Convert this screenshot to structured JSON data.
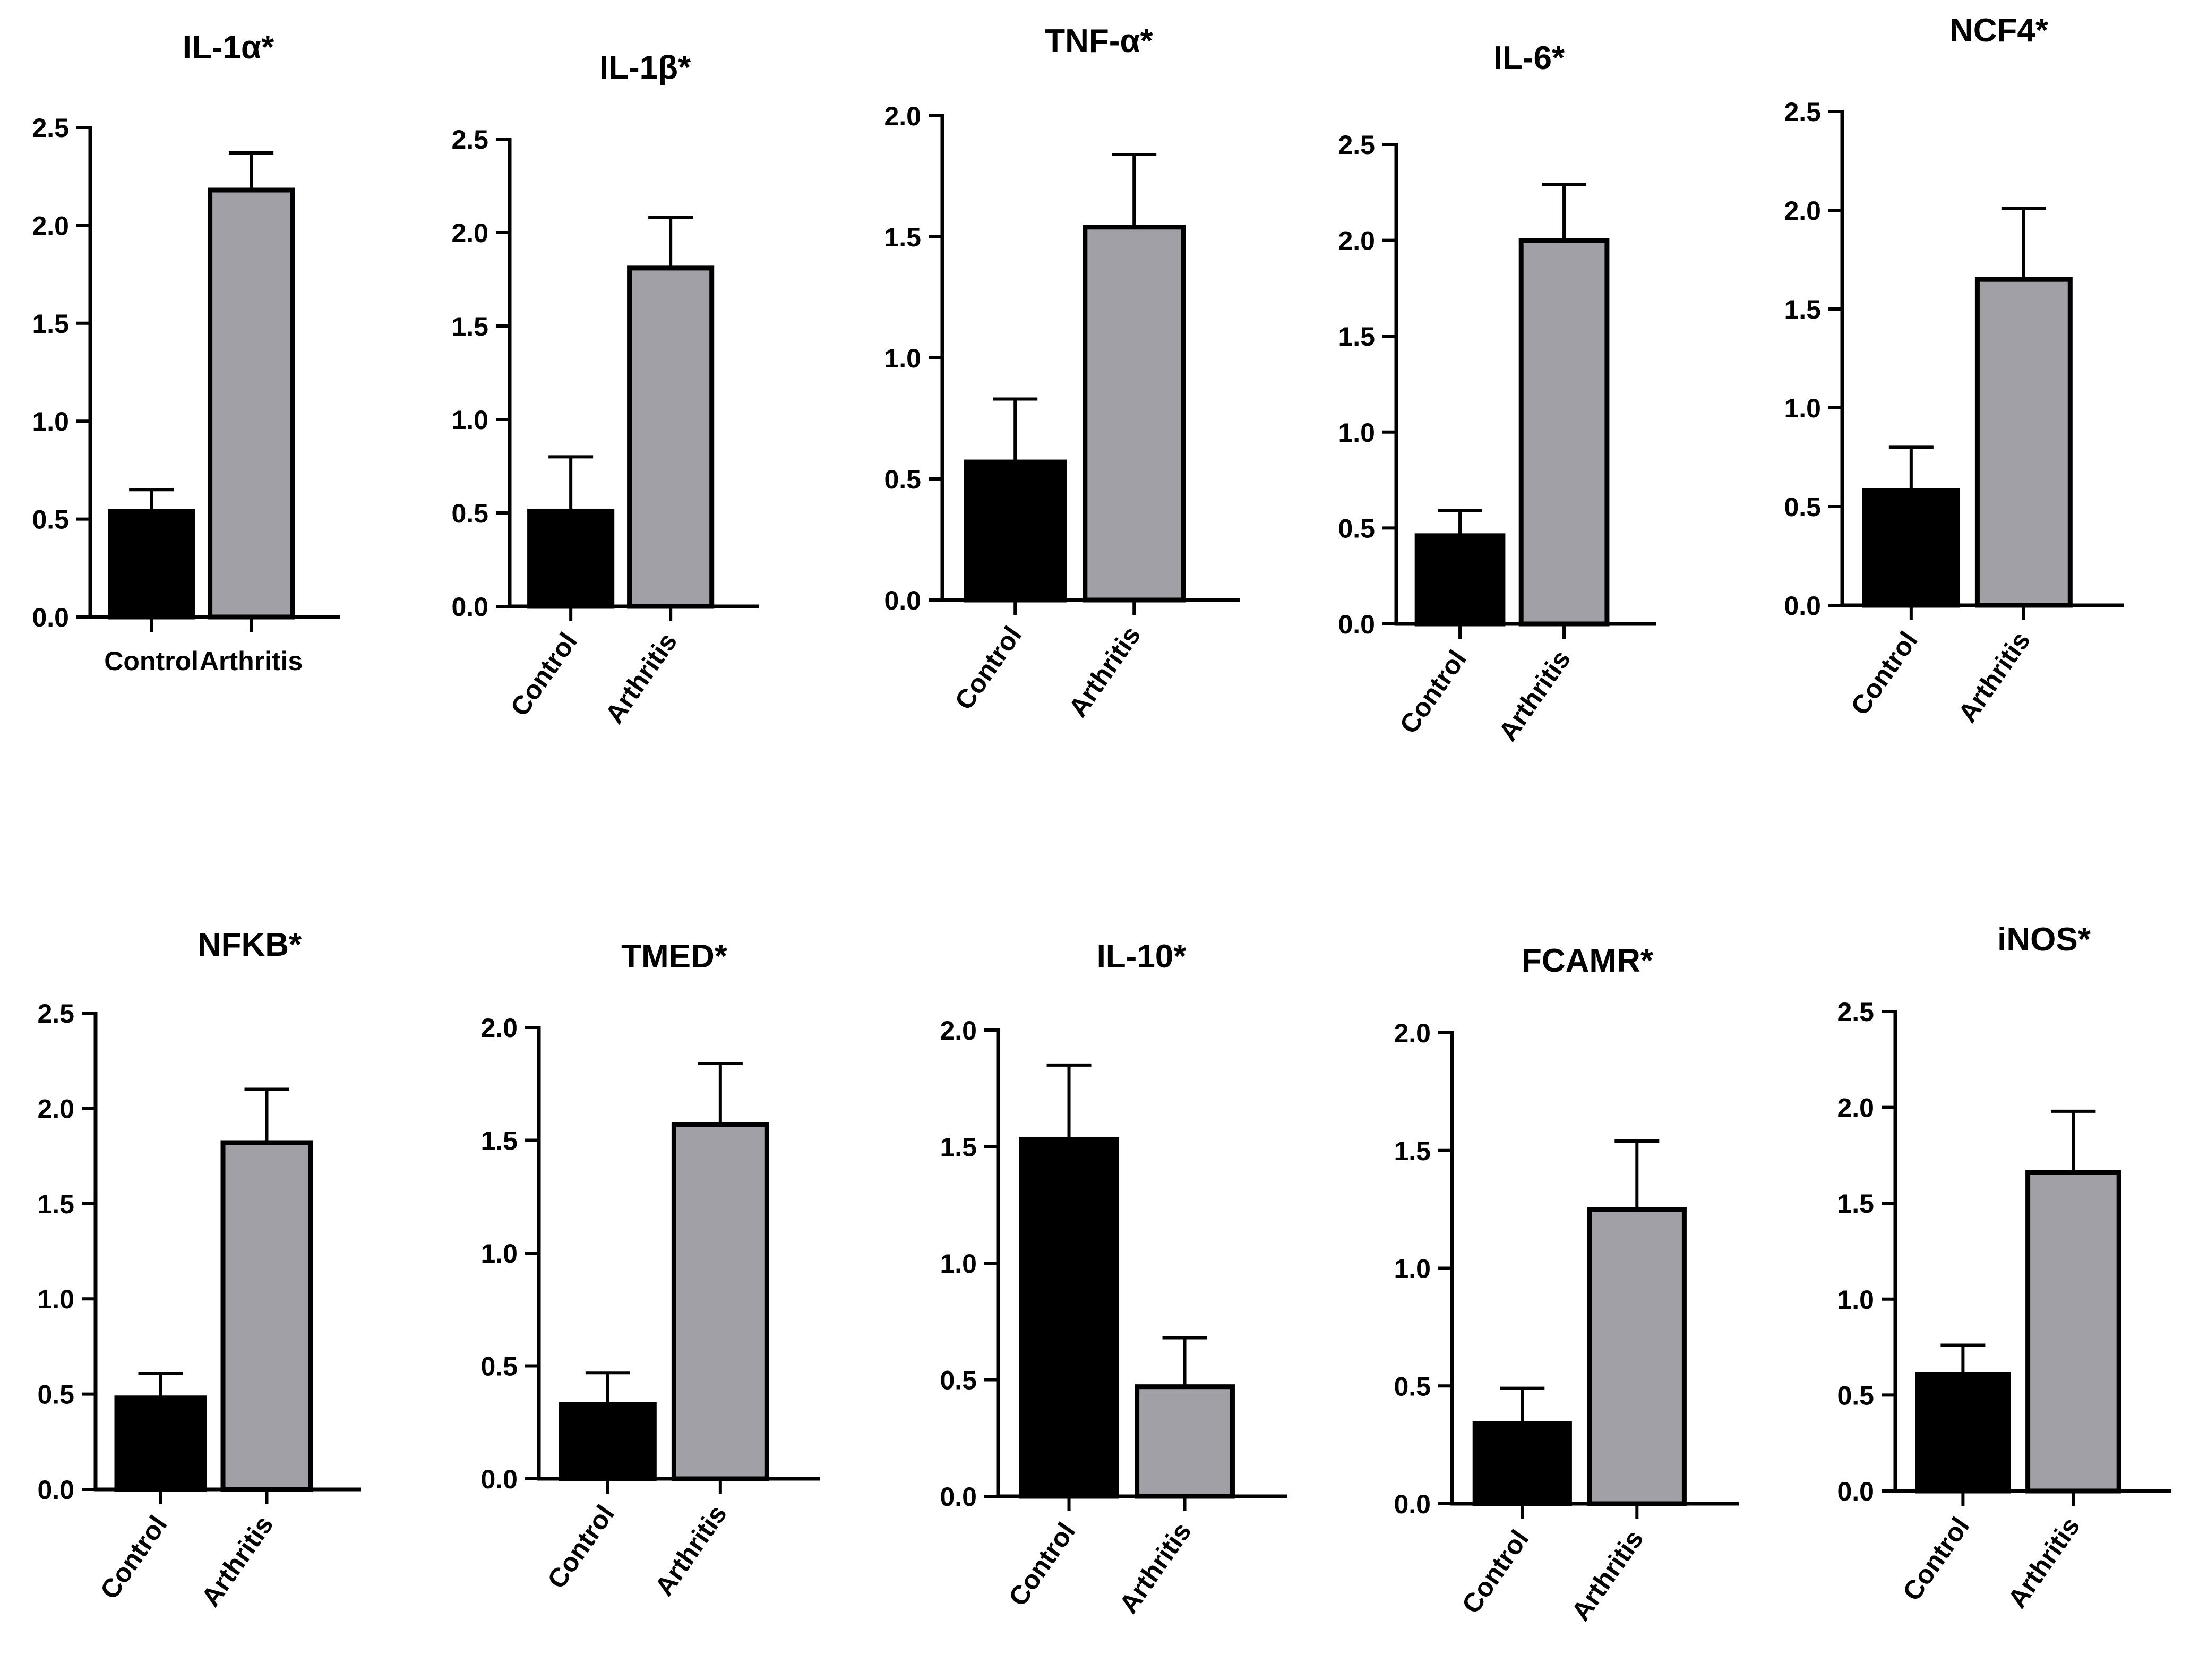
{
  "figure": {
    "bar_colors": {
      "Control": "#000000",
      "Arthritis": "#a0a0a6"
    },
    "outline_color": "#000000"
  },
  "chart_data": [
    {
      "type": "bar",
      "title": "IL-1α*",
      "categories": [
        "Control",
        "Arthritis"
      ],
      "values": [
        0.54,
        2.18
      ],
      "errors": [
        0.11,
        0.19
      ],
      "ylim": [
        0,
        2.5
      ],
      "yticks": [
        "0.0",
        "0.5",
        "1.0",
        "1.5",
        "2.0",
        "2.5"
      ],
      "xlabel": "",
      "ylabel": "",
      "tick_rotation": 0
    },
    {
      "type": "bar",
      "title": "IL-1β*",
      "categories": [
        "Control",
        "Arthritis"
      ],
      "values": [
        0.51,
        1.81
      ],
      "errors": [
        0.29,
        0.27
      ],
      "ylim": [
        0,
        2.5
      ],
      "yticks": [
        "0.0",
        "0.5",
        "1.0",
        "1.5",
        "2.0",
        "2.5"
      ],
      "xlabel": "",
      "ylabel": "",
      "tick_rotation": -55
    },
    {
      "type": "bar",
      "title": "TNF-α*",
      "categories": [
        "Control",
        "Arthritis"
      ],
      "values": [
        0.57,
        1.54
      ],
      "errors": [
        0.26,
        0.3
      ],
      "ylim": [
        0,
        2.0
      ],
      "yticks": [
        "0.0",
        "0.5",
        "1.0",
        "1.5",
        "2.0"
      ],
      "xlabel": "",
      "ylabel": "",
      "tick_rotation": -55
    },
    {
      "type": "bar",
      "title": "IL-6*",
      "categories": [
        "Control",
        "Arthritis"
      ],
      "values": [
        0.46,
        2.0
      ],
      "errors": [
        0.13,
        0.29
      ],
      "ylim": [
        0,
        2.5
      ],
      "yticks": [
        "0.0",
        "0.5",
        "1.0",
        "1.5",
        "2.0",
        "2.5"
      ],
      "xlabel": "",
      "ylabel": "",
      "tick_rotation": -55
    },
    {
      "type": "bar",
      "title": "NCF4*",
      "categories": [
        "Control",
        "Arthritis"
      ],
      "values": [
        0.58,
        1.65
      ],
      "errors": [
        0.22,
        0.36
      ],
      "ylim": [
        0,
        2.5
      ],
      "yticks": [
        "0.0",
        "0.5",
        "1.0",
        "1.5",
        "2.0",
        "2.5"
      ],
      "xlabel": "",
      "ylabel": "",
      "tick_rotation": -55
    },
    {
      "type": "bar",
      "title": "NFKB*",
      "categories": [
        "Control",
        "Arthritis"
      ],
      "values": [
        0.48,
        1.82
      ],
      "errors": [
        0.13,
        0.28
      ],
      "ylim": [
        0,
        2.5
      ],
      "yticks": [
        "0.0",
        "0.5",
        "1.0",
        "1.5",
        "2.0",
        "2.5"
      ],
      "xlabel": "",
      "ylabel": "",
      "tick_rotation": -55
    },
    {
      "type": "bar",
      "title": "TMED*",
      "categories": [
        "Control",
        "Arthritis"
      ],
      "values": [
        0.33,
        1.57
      ],
      "errors": [
        0.14,
        0.27
      ],
      "ylim": [
        0,
        2.0
      ],
      "yticks": [
        "0.0",
        "0.5",
        "1.0",
        "1.5",
        "2.0"
      ],
      "xlabel": "",
      "ylabel": "",
      "tick_rotation": -55
    },
    {
      "type": "bar",
      "title": "IL-10*",
      "categories": [
        "Control",
        "Arthritis"
      ],
      "values": [
        1.53,
        0.47
      ],
      "errors": [
        0.32,
        0.21
      ],
      "ylim": [
        0,
        2.0
      ],
      "yticks": [
        "0.0",
        "0.5",
        "1.0",
        "1.5",
        "2.0"
      ],
      "xlabel": "",
      "ylabel": "",
      "tick_rotation": -55
    },
    {
      "type": "bar",
      "title": "FCAMR*",
      "categories": [
        "Control",
        "Arthritis"
      ],
      "values": [
        0.34,
        1.25
      ],
      "errors": [
        0.15,
        0.29
      ],
      "ylim": [
        0,
        2.0
      ],
      "yticks": [
        "0.0",
        "0.5",
        "1.0",
        "1.5",
        "2.0"
      ],
      "xlabel": "",
      "ylabel": "",
      "tick_rotation": -55
    },
    {
      "type": "bar",
      "title": "iNOS*",
      "categories": [
        "Control",
        "Arthritis"
      ],
      "values": [
        0.61,
        1.66
      ],
      "errors": [
        0.15,
        0.32
      ],
      "ylim": [
        0,
        2.5
      ],
      "yticks": [
        "0.0",
        "0.5",
        "1.0",
        "1.5",
        "2.0",
        "2.5"
      ],
      "xlabel": "",
      "ylabel": "",
      "tick_rotation": -55
    }
  ]
}
